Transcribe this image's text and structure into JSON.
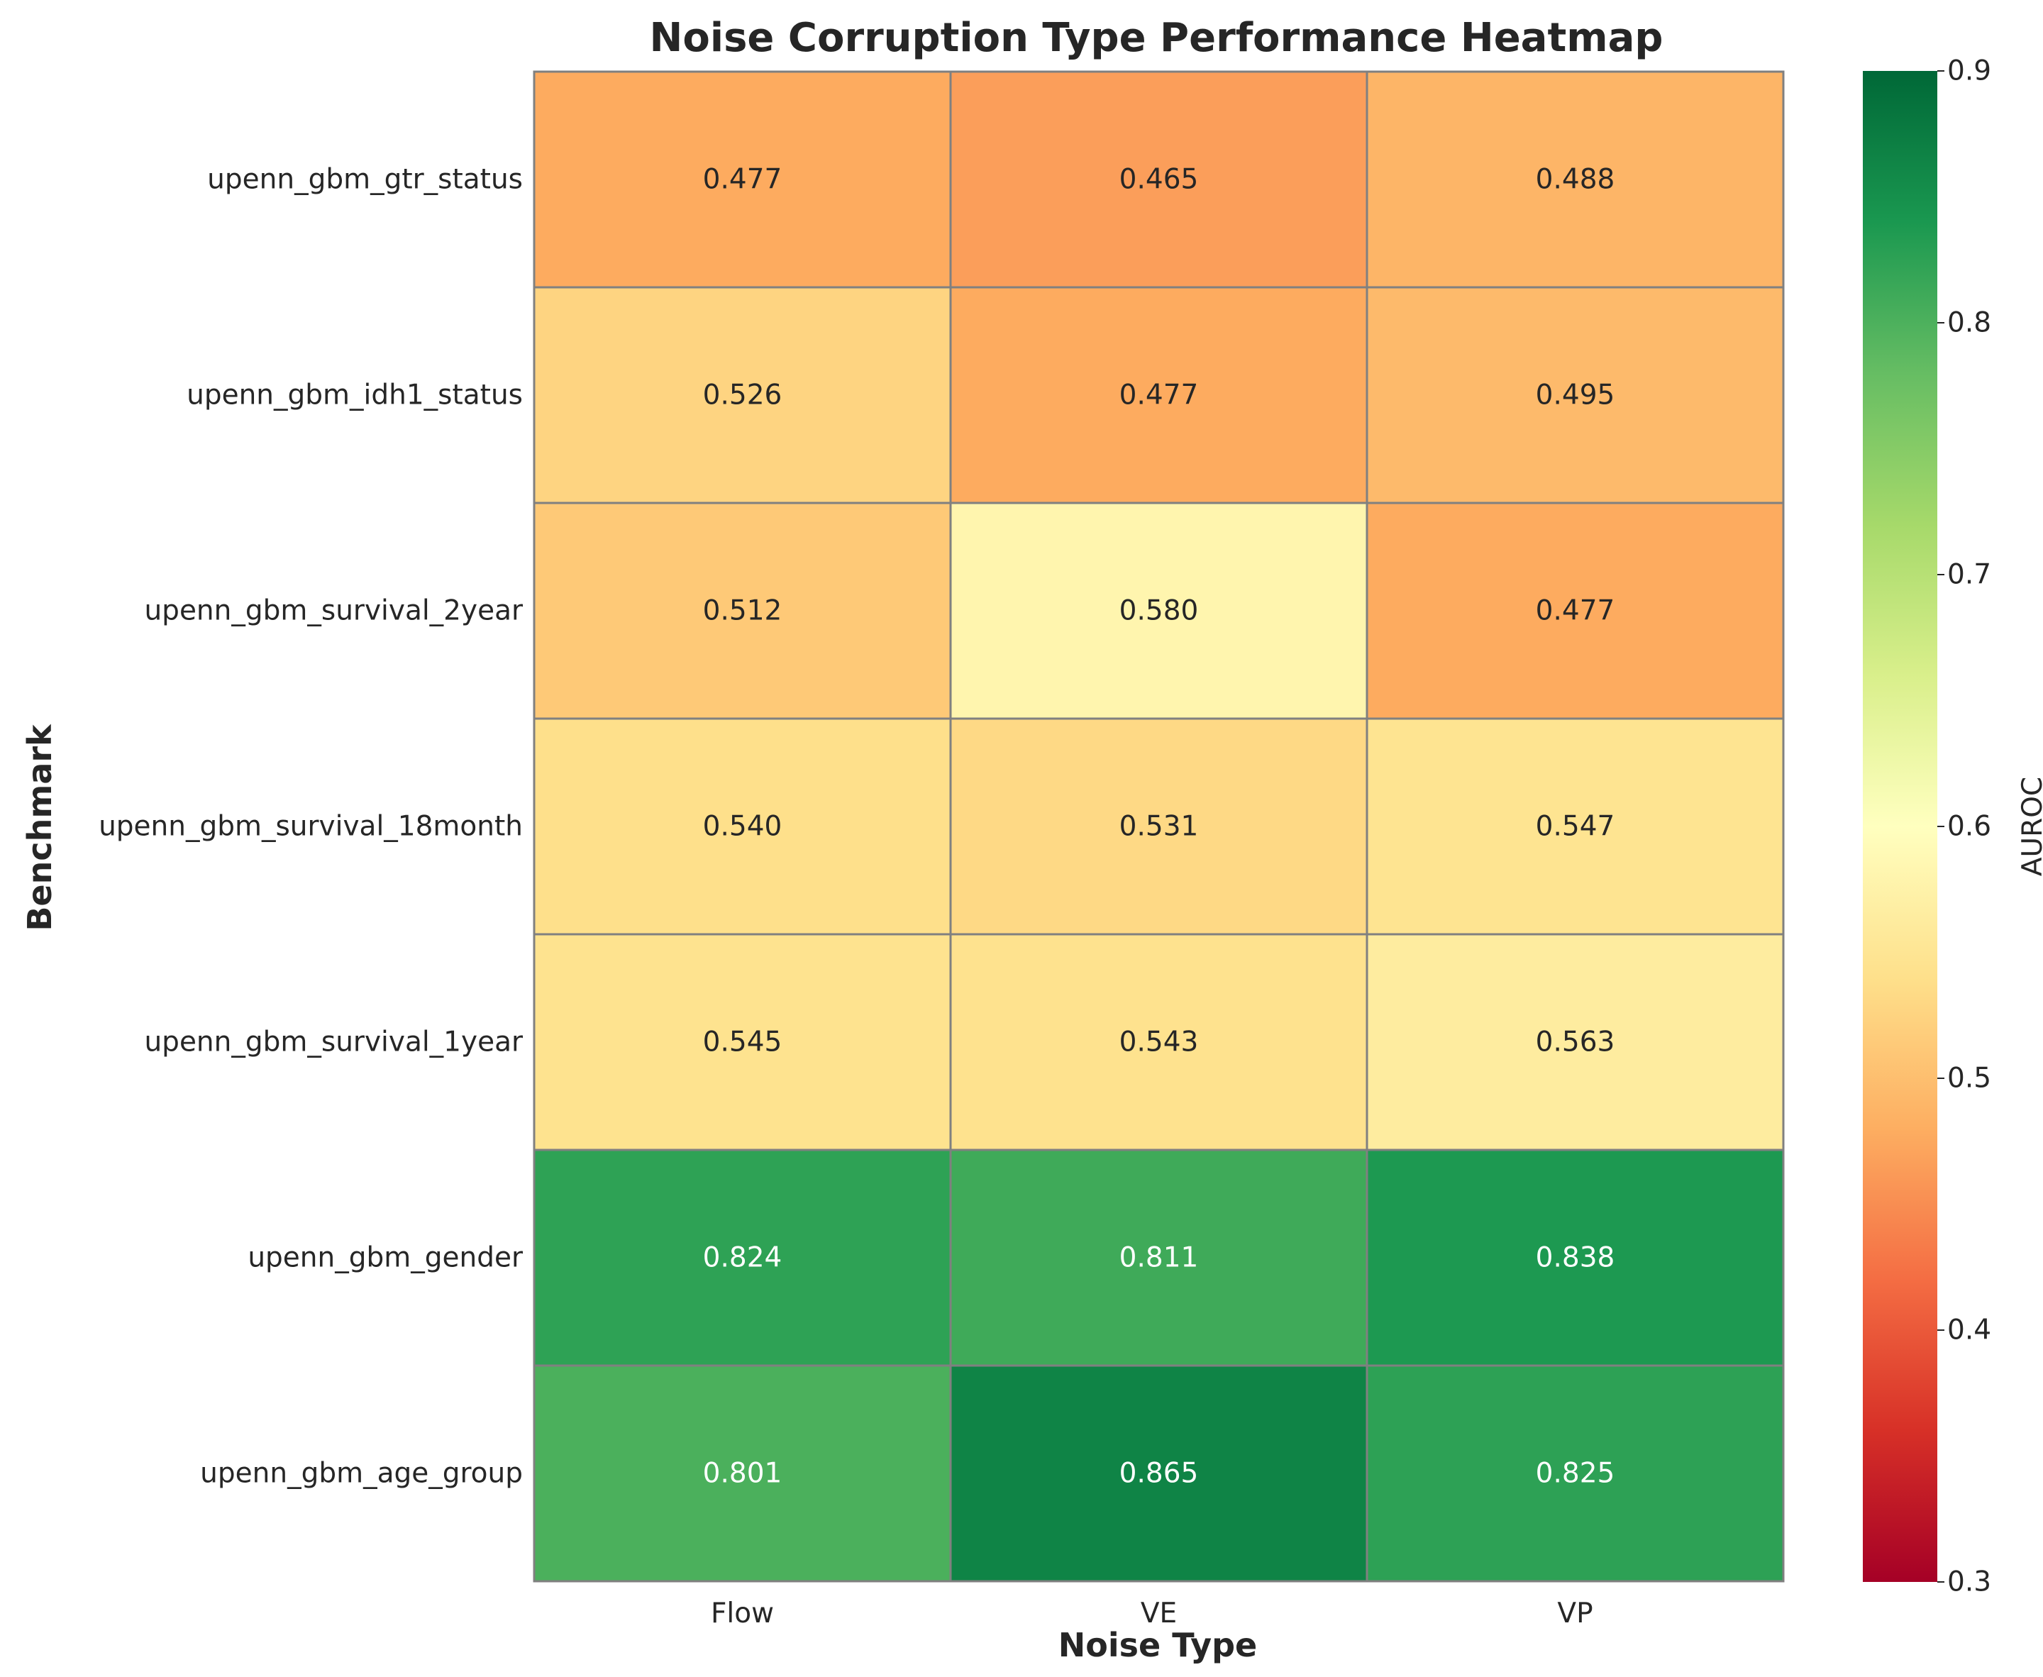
{
  "chart_data": {
    "type": "heatmap",
    "title": "Noise Corruption Type Performance Heatmap",
    "xlabel": "Noise Type",
    "ylabel": "Benchmark",
    "x_categories": [
      "Flow",
      "VE",
      "VP"
    ],
    "y_categories": [
      "upenn_gbm_gtr_status",
      "upenn_gbm_idh1_status",
      "upenn_gbm_survival_2year",
      "upenn_gbm_survival_18month",
      "upenn_gbm_survival_1year",
      "upenn_gbm_gender",
      "upenn_gbm_age_group"
    ],
    "values": [
      [
        0.477,
        0.465,
        0.488
      ],
      [
        0.526,
        0.477,
        0.495
      ],
      [
        0.512,
        0.58,
        0.477
      ],
      [
        0.54,
        0.531,
        0.547
      ],
      [
        0.545,
        0.543,
        0.563
      ],
      [
        0.824,
        0.811,
        0.838
      ],
      [
        0.801,
        0.865,
        0.825
      ]
    ],
    "value_labels": [
      [
        "0.477",
        "0.465",
        "0.488"
      ],
      [
        "0.526",
        "0.477",
        "0.495"
      ],
      [
        "0.512",
        "0.580",
        "0.477"
      ],
      [
        "0.540",
        "0.531",
        "0.547"
      ],
      [
        "0.545",
        "0.543",
        "0.563"
      ],
      [
        "0.824",
        "0.811",
        "0.838"
      ],
      [
        "0.801",
        "0.865",
        "0.825"
      ]
    ],
    "colorbar": {
      "label": "AUROC",
      "vmin": 0.3,
      "vmax": 0.9,
      "colormap": "RdYlGn",
      "ticks": [
        0.3,
        0.4,
        0.5,
        0.6,
        0.7,
        0.8,
        0.9
      ],
      "tick_labels": [
        "0.3",
        "0.4",
        "0.5",
        "0.6",
        "0.7",
        "0.8",
        "0.9"
      ]
    },
    "cell_border_color": "#808080"
  }
}
